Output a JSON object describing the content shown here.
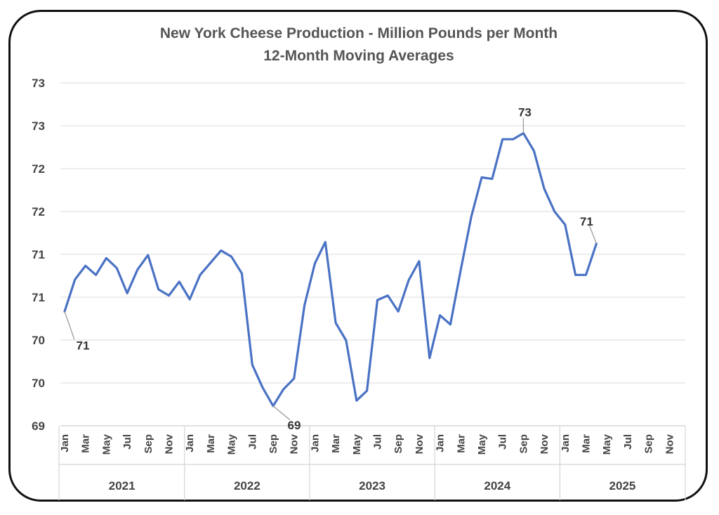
{
  "chart_data": {
    "type": "line",
    "title": "New York Cheese Production - Million Pounds per Month",
    "subtitle": "12-Month Moving Averages",
    "ylabel": "",
    "xlabel": "",
    "ylim": [
      69,
      73.5
    ],
    "y_ticks": [
      "73",
      "73",
      "72",
      "72",
      "71",
      "71",
      "70",
      "70",
      "69"
    ],
    "grid": true,
    "month_labels": [
      "Jan",
      "Mar",
      "May",
      "Jul",
      "Sep",
      "Nov"
    ],
    "years": [
      "2021",
      "2022",
      "2023",
      "2024",
      "2025"
    ],
    "series": [
      {
        "color": "#4a72c4",
        "x": [
          "2021-01",
          "2021-02",
          "2021-03",
          "2021-04",
          "2021-05",
          "2021-06",
          "2021-07",
          "2021-08",
          "2021-09",
          "2021-10",
          "2021-11",
          "2021-12",
          "2022-01",
          "2022-02",
          "2022-03",
          "2022-04",
          "2022-05",
          "2022-06",
          "2022-07",
          "2022-08",
          "2022-09",
          "2022-10",
          "2022-11",
          "2022-12",
          "2023-01",
          "2023-02",
          "2023-03",
          "2023-04",
          "2023-05",
          "2023-06",
          "2023-07",
          "2023-08",
          "2023-09",
          "2023-10",
          "2023-11",
          "2023-12",
          "2024-01",
          "2024-02",
          "2024-03",
          "2024-04",
          "2024-05",
          "2024-06",
          "2024-07",
          "2024-08",
          "2024-09",
          "2024-10",
          "2024-11",
          "2024-12",
          "2025-01",
          "2025-02",
          "2025-03",
          "2025-04"
        ],
        "values": [
          70.5,
          70.92,
          71.1,
          70.98,
          71.2,
          71.07,
          70.74,
          71.05,
          71.24,
          70.79,
          70.71,
          70.89,
          70.66,
          70.98,
          71.14,
          71.3,
          71.22,
          71.0,
          69.8,
          69.5,
          69.26,
          69.48,
          69.62,
          70.58,
          71.13,
          71.41,
          70.35,
          70.12,
          69.33,
          69.46,
          70.65,
          70.71,
          70.5,
          70.91,
          71.16,
          69.89,
          70.45,
          70.33,
          71.05,
          71.74,
          72.26,
          72.24,
          72.76,
          72.76,
          72.84,
          72.61,
          72.11,
          71.81,
          71.64,
          70.98,
          70.98,
          71.39
        ]
      }
    ],
    "annotations": [
      {
        "label": "71",
        "index": 0
      },
      {
        "label": "69",
        "index": 20
      },
      {
        "label": "73",
        "index": 44
      },
      {
        "label": "71",
        "index": 51
      }
    ]
  }
}
